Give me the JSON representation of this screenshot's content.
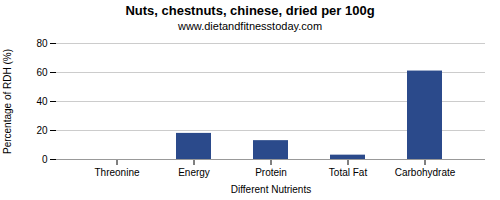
{
  "chart_data": {
    "type": "bar",
    "title": "Nuts, chestnuts, chinese, dried per 100g",
    "subtitle": "www.dietandfitnesstoday.com",
    "xlabel": "Different Nutrients",
    "ylabel": "Percentage of RDH (%)",
    "categories": [
      "Threonine",
      "Energy",
      "Protein",
      "Total Fat",
      "Carbohydrate"
    ],
    "values": [
      0,
      18,
      13,
      3,
      61
    ],
    "color": "#2b4a8b",
    "ylim": [
      0,
      80
    ],
    "yticks": [
      0,
      20,
      40,
      60,
      80
    ],
    "grid": true
  }
}
